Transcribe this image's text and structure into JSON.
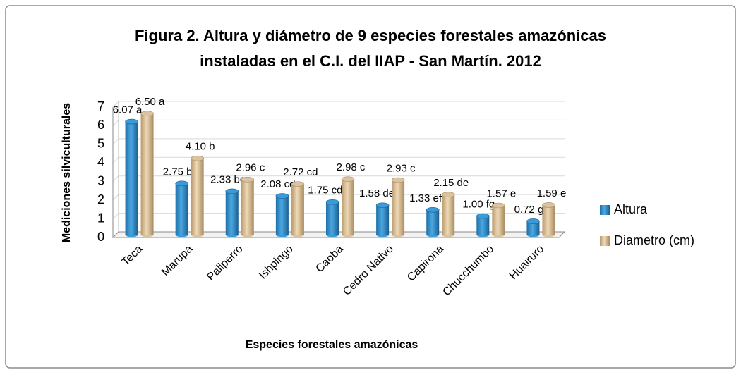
{
  "chart_data": {
    "type": "bar",
    "title": [
      "Figura 2. Altura y diámetro de 9 especies forestales amazónicas",
      "instaladas en el C.I. del IIAP - San Martín. 2012"
    ],
    "x_label": "Especies forestales amazónicas",
    "y_label": "Mediciones silviculturales",
    "categories": [
      "Teca",
      "Marupa",
      "Paliperro",
      "Ishpingo",
      "Caoba",
      "Cedro Nativo",
      "Capirona",
      "Chucchumbo",
      "Huairuro"
    ],
    "series": [
      {
        "name": "Altura",
        "color": "#3b9ad8",
        "values": [
          6.07,
          2.75,
          2.33,
          2.08,
          1.75,
          1.58,
          1.33,
          1.0,
          0.72
        ],
        "value_labels": [
          "6.07 a",
          "2.75 b",
          "2.33 bc",
          "2.08 cd",
          "1.75 cde",
          "1.58 def",
          "1.33 efg",
          "1.00 fg",
          "0.72 g"
        ]
      },
      {
        "name": "Diametro (cm)",
        "color": "#d9c3a0",
        "values": [
          6.5,
          4.1,
          2.96,
          2.72,
          2.98,
          2.93,
          2.15,
          1.57,
          1.59
        ],
        "value_labels": [
          "6.50 a",
          "4.10 b",
          "2.96 c",
          "2.72 cd",
          "2.98  c",
          "2.93 c",
          "2.15 de",
          "1.57 e",
          "1.59 e"
        ]
      }
    ],
    "ylim": [
      0,
      7
    ],
    "yticks": [
      0,
      1,
      2,
      3,
      4,
      5,
      6,
      7
    ],
    "grid": true,
    "legend": "right"
  }
}
